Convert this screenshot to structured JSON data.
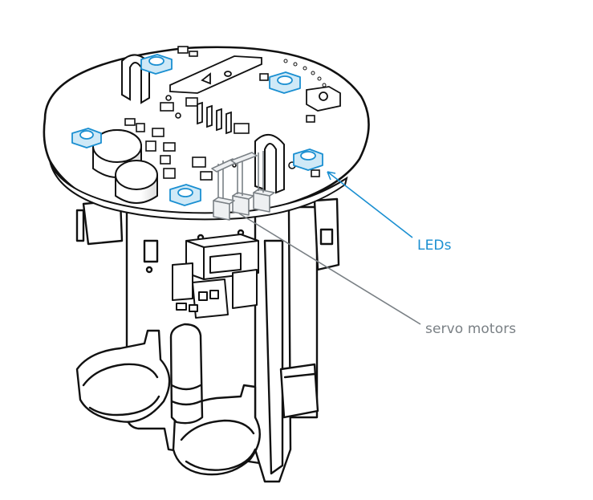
{
  "labels": {
    "leds": "LEDs",
    "servo_motors": "servo motors"
  },
  "colors": {
    "line": "#111111",
    "led_fill": "#cfe9f7",
    "led_stroke": "#1a8fd1",
    "leds_callout": "#1a8fd1",
    "servo_callout": "#7a8085",
    "servo_fill": "#eef0f2"
  }
}
